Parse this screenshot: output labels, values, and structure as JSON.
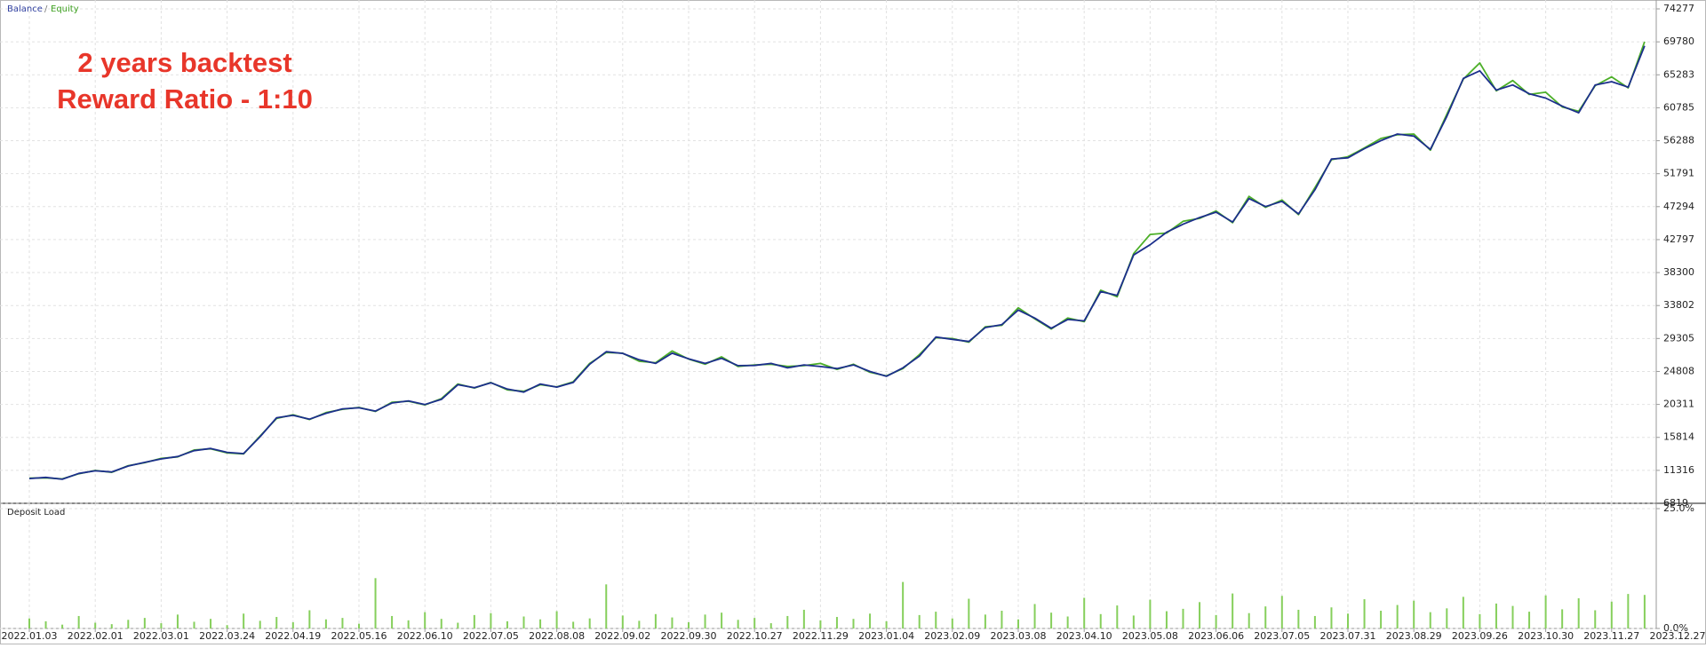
{
  "chart_data": [
    {
      "type": "line",
      "annotations": [
        "2 years backtest",
        "Reward Ratio - 1:10"
      ],
      "legend_separator": "/",
      "categories": [
        "2022.01.03",
        null,
        null,
        null,
        "2022.02.01",
        null,
        null,
        null,
        "2022.03.01",
        null,
        null,
        null,
        "2022.03.24",
        null,
        null,
        null,
        "2022.04.19",
        null,
        null,
        null,
        "2022.05.16",
        null,
        null,
        null,
        "2022.06.10",
        null,
        null,
        null,
        "2022.07.05",
        null,
        null,
        null,
        "2022.08.08",
        null,
        null,
        null,
        "2022.09.02",
        null,
        null,
        null,
        "2022.09.30",
        null,
        null,
        null,
        "2022.10.27",
        null,
        null,
        null,
        "2022.11.29",
        null,
        null,
        null,
        "2023.01.04",
        null,
        null,
        null,
        "2023.02.09",
        null,
        null,
        null,
        "2023.03.08",
        null,
        null,
        null,
        "2023.04.10",
        null,
        null,
        null,
        "2023.05.08",
        null,
        null,
        null,
        "2023.06.06",
        null,
        null,
        null,
        "2023.07.05",
        null,
        null,
        null,
        "2023.07.31",
        null,
        null,
        null,
        "2023.08.29",
        null,
        null,
        null,
        "2023.09.26",
        null,
        null,
        null,
        "2023.10.30",
        null,
        null,
        null,
        "2023.11.27",
        null,
        null,
        null,
        "2023.12.27"
      ],
      "series": [
        {
          "name": "Equity",
          "color": "#4caf28",
          "values": [
            10250,
            10300,
            10150,
            10850,
            11300,
            11050,
            11950,
            12350,
            12950,
            13150,
            14100,
            14250,
            13700,
            13550,
            16000,
            18400,
            18900,
            18250,
            19200,
            19650,
            19900,
            19350,
            20600,
            20750,
            20250,
            21100,
            23100,
            22550,
            23300,
            22300,
            22100,
            23000,
            22700,
            23400,
            25900,
            27400,
            27300,
            26200,
            26000,
            27600,
            26500,
            25800,
            26800,
            25500,
            25700,
            25800,
            25500,
            25600,
            25900,
            25100,
            25800,
            24700,
            24200,
            25200,
            27100,
            29400,
            29300,
            28800,
            30900,
            31100,
            33500,
            32000,
            30600,
            32100,
            31600,
            35900,
            35000,
            40900,
            43500,
            43700,
            45300,
            45700,
            46700,
            45100,
            48700,
            47200,
            48200,
            46200,
            49900,
            53700,
            54100,
            55300,
            56600,
            57100,
            57200,
            55000,
            59900,
            64700,
            66900,
            63100,
            64500,
            62600,
            62900,
            60900,
            60300,
            63800,
            65000,
            63500,
            69800,
            null,
            null
          ]
        },
        {
          "name": "Balance",
          "color": "#1c2f8c",
          "values": [
            10200,
            10350,
            10100,
            10900,
            11250,
            11100,
            11900,
            12400,
            12880,
            13200,
            14000,
            14300,
            13770,
            13600,
            15900,
            18500,
            18820,
            18300,
            19100,
            19700,
            19850,
            19400,
            20500,
            20800,
            20300,
            21000,
            23000,
            22600,
            23260,
            22400,
            22000,
            23100,
            22670,
            23300,
            25800,
            27500,
            27270,
            26400,
            25900,
            27300,
            26530,
            25900,
            26600,
            25600,
            25630,
            25900,
            25300,
            25700,
            25480,
            25200,
            25700,
            24800,
            24150,
            25300,
            26900,
            29500,
            29190,
            28900,
            30800,
            31200,
            33190,
            32100,
            30700,
            31900,
            31710,
            35700,
            35200,
            40700,
            42100,
            43800,
            44900,
            45800,
            46540,
            45200,
            48400,
            47300,
            48020,
            46300,
            49600,
            53800,
            53960,
            55200,
            56300,
            57200,
            56920,
            55100,
            59600,
            64800,
            65820,
            63200,
            63900,
            62700,
            62110,
            61000,
            60100,
            63900,
            64340,
            63600,
            69230,
            null,
            null
          ]
        }
      ],
      "ylim": [
        6819,
        74277
      ],
      "yticks": [
        6819,
        11316,
        15814,
        20311,
        24808,
        29305,
        33802,
        38300,
        42797,
        47294,
        51791,
        56288,
        60785,
        65283,
        69780,
        74277
      ],
      "grid": true
    },
    {
      "type": "bar",
      "title": "Deposit Load",
      "color": "#86cf5c",
      "values": [
        2.1,
        1.5,
        0.8,
        2.6,
        1.2,
        0.9,
        1.8,
        2.2,
        1.1,
        2.9,
        1.4,
        2.0,
        0.7,
        3.1,
        1.6,
        2.4,
        1.3,
        3.8,
        1.9,
        2.2,
        1.0,
        10.5,
        2.6,
        1.7,
        3.4,
        2.0,
        1.2,
        2.8,
        3.2,
        1.5,
        2.5,
        1.9,
        3.6,
        1.4,
        2.1,
        9.2,
        2.7,
        1.6,
        3.0,
        2.3,
        1.3,
        2.9,
        3.3,
        1.8,
        2.2,
        1.1,
        2.6,
        3.9,
        1.7,
        2.4,
        2.0,
        3.1,
        1.5,
        9.7,
        2.8,
        3.5,
        2.1,
        6.2,
        2.9,
        3.7,
        1.9,
        5.1,
        3.3,
        2.5,
        6.4,
        3.0,
        4.8,
        2.7,
        6.0,
        3.6,
        4.1,
        5.5,
        2.8,
        7.3,
        3.2,
        4.6,
        6.8,
        3.9,
        2.6,
        4.4,
        3.1,
        6.1,
        3.7,
        4.9,
        5.8,
        3.4,
        4.2,
        6.6,
        3.0,
        5.2,
        4.7,
        3.5,
        6.9,
        4.0,
        6.3,
        3.8,
        5.6,
        7.2,
        7.0,
        null,
        null
      ],
      "ylim": [
        0,
        25
      ],
      "yticks": [
        {
          "value": 0,
          "label": "0.0%"
        },
        {
          "value": 25,
          "label": "25.0%"
        }
      ],
      "grid": true
    }
  ]
}
